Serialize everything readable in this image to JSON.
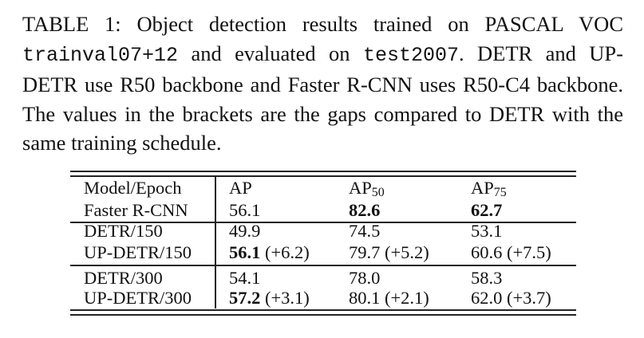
{
  "caption": {
    "p1": "TABLE 1: Object detection results trained on PASCAL VOC ",
    "m1": "trainval07+12",
    "p2": " and evaluated on ",
    "m2": "test2007",
    "p3": ". DETR and UP-DETR use R50 backbone and Faster R-CNN uses R50-C4 backbone. The values in the brackets are the gaps compared to DETR with the same training schedule."
  },
  "table": {
    "headers": [
      {
        "base": "Model/Epoch",
        "sub": ""
      },
      {
        "base": "AP",
        "sub": ""
      },
      {
        "base": "AP",
        "sub": "50"
      },
      {
        "base": "AP",
        "sub": "75"
      }
    ],
    "rows": [
      {
        "model": "Faster R-CNN",
        "cells": [
          {
            "v": "56.1",
            "bold": false,
            "gap": ""
          },
          {
            "v": "82.6",
            "bold": true,
            "gap": ""
          },
          {
            "v": "62.7",
            "bold": true,
            "gap": ""
          }
        ]
      },
      {
        "model": "DETR/150",
        "cells": [
          {
            "v": "49.9",
            "bold": false,
            "gap": ""
          },
          {
            "v": "74.5",
            "bold": false,
            "gap": ""
          },
          {
            "v": "53.1",
            "bold": false,
            "gap": ""
          }
        ]
      },
      {
        "model": "UP-DETR/150",
        "cells": [
          {
            "v": "56.1",
            "bold": true,
            "gap": "(+6.2)"
          },
          {
            "v": "79.7",
            "bold": false,
            "gap": "(+5.2)"
          },
          {
            "v": "60.6",
            "bold": false,
            "gap": "(+7.5)"
          }
        ]
      },
      {
        "model": "DETR/300",
        "cells": [
          {
            "v": "54.1",
            "bold": false,
            "gap": ""
          },
          {
            "v": "78.0",
            "bold": false,
            "gap": ""
          },
          {
            "v": "58.3",
            "bold": false,
            "gap": ""
          }
        ]
      },
      {
        "model": "UP-DETR/300",
        "cells": [
          {
            "v": "57.2",
            "bold": true,
            "gap": "(+3.1)"
          },
          {
            "v": "80.1",
            "bold": false,
            "gap": "(+2.1)"
          },
          {
            "v": "62.0",
            "bold": false,
            "gap": "(+3.7)"
          }
        ]
      }
    ]
  }
}
